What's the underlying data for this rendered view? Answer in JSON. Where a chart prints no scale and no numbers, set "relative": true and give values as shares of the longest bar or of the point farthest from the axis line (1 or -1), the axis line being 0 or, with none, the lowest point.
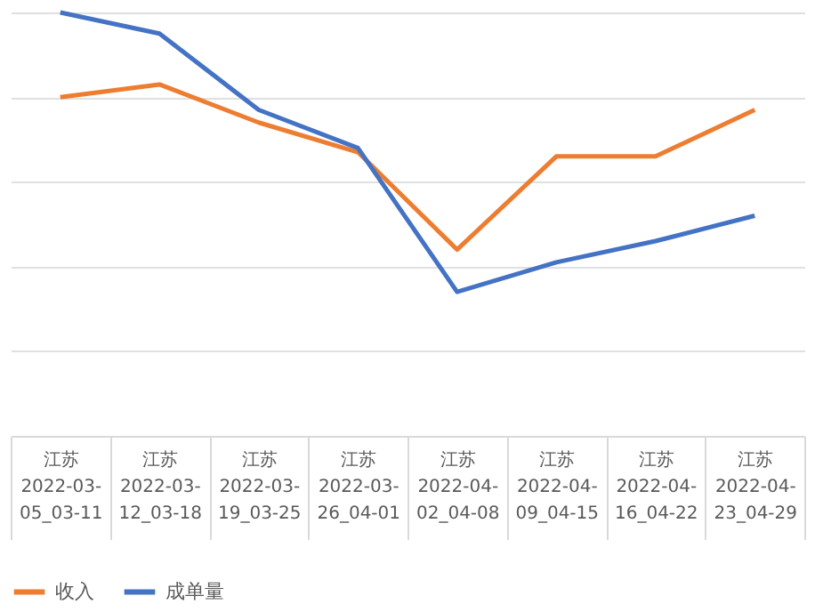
{
  "chart_data": {
    "type": "line",
    "relative": true,
    "grid": "y",
    "legend": "bottom",
    "line_style": "solid",
    "marker": "none",
    "categories": [
      "江苏 2022-03-05_03-11",
      "江苏 2022-03-12_03-18",
      "江苏 2022-03-19_03-25",
      "江苏 2022-03-26_04-01",
      "江苏 2022-04-02_04-08",
      "江苏 2022-04-09_04-15",
      "江苏 2022-04-16_04-22",
      "江苏 2022-04-23_04-29"
    ],
    "series": [
      {
        "name": "收入",
        "color": "#ed7d31",
        "values": [
          0.8,
          0.83,
          0.74,
          0.67,
          0.44,
          0.66,
          0.66,
          0.77
        ]
      },
      {
        "name": "成单量",
        "color": "#4472c4",
        "values": [
          1,
          0.95,
          0.77,
          0.68,
          0.34,
          0.41,
          0.46,
          0.52
        ]
      }
    ]
  }
}
